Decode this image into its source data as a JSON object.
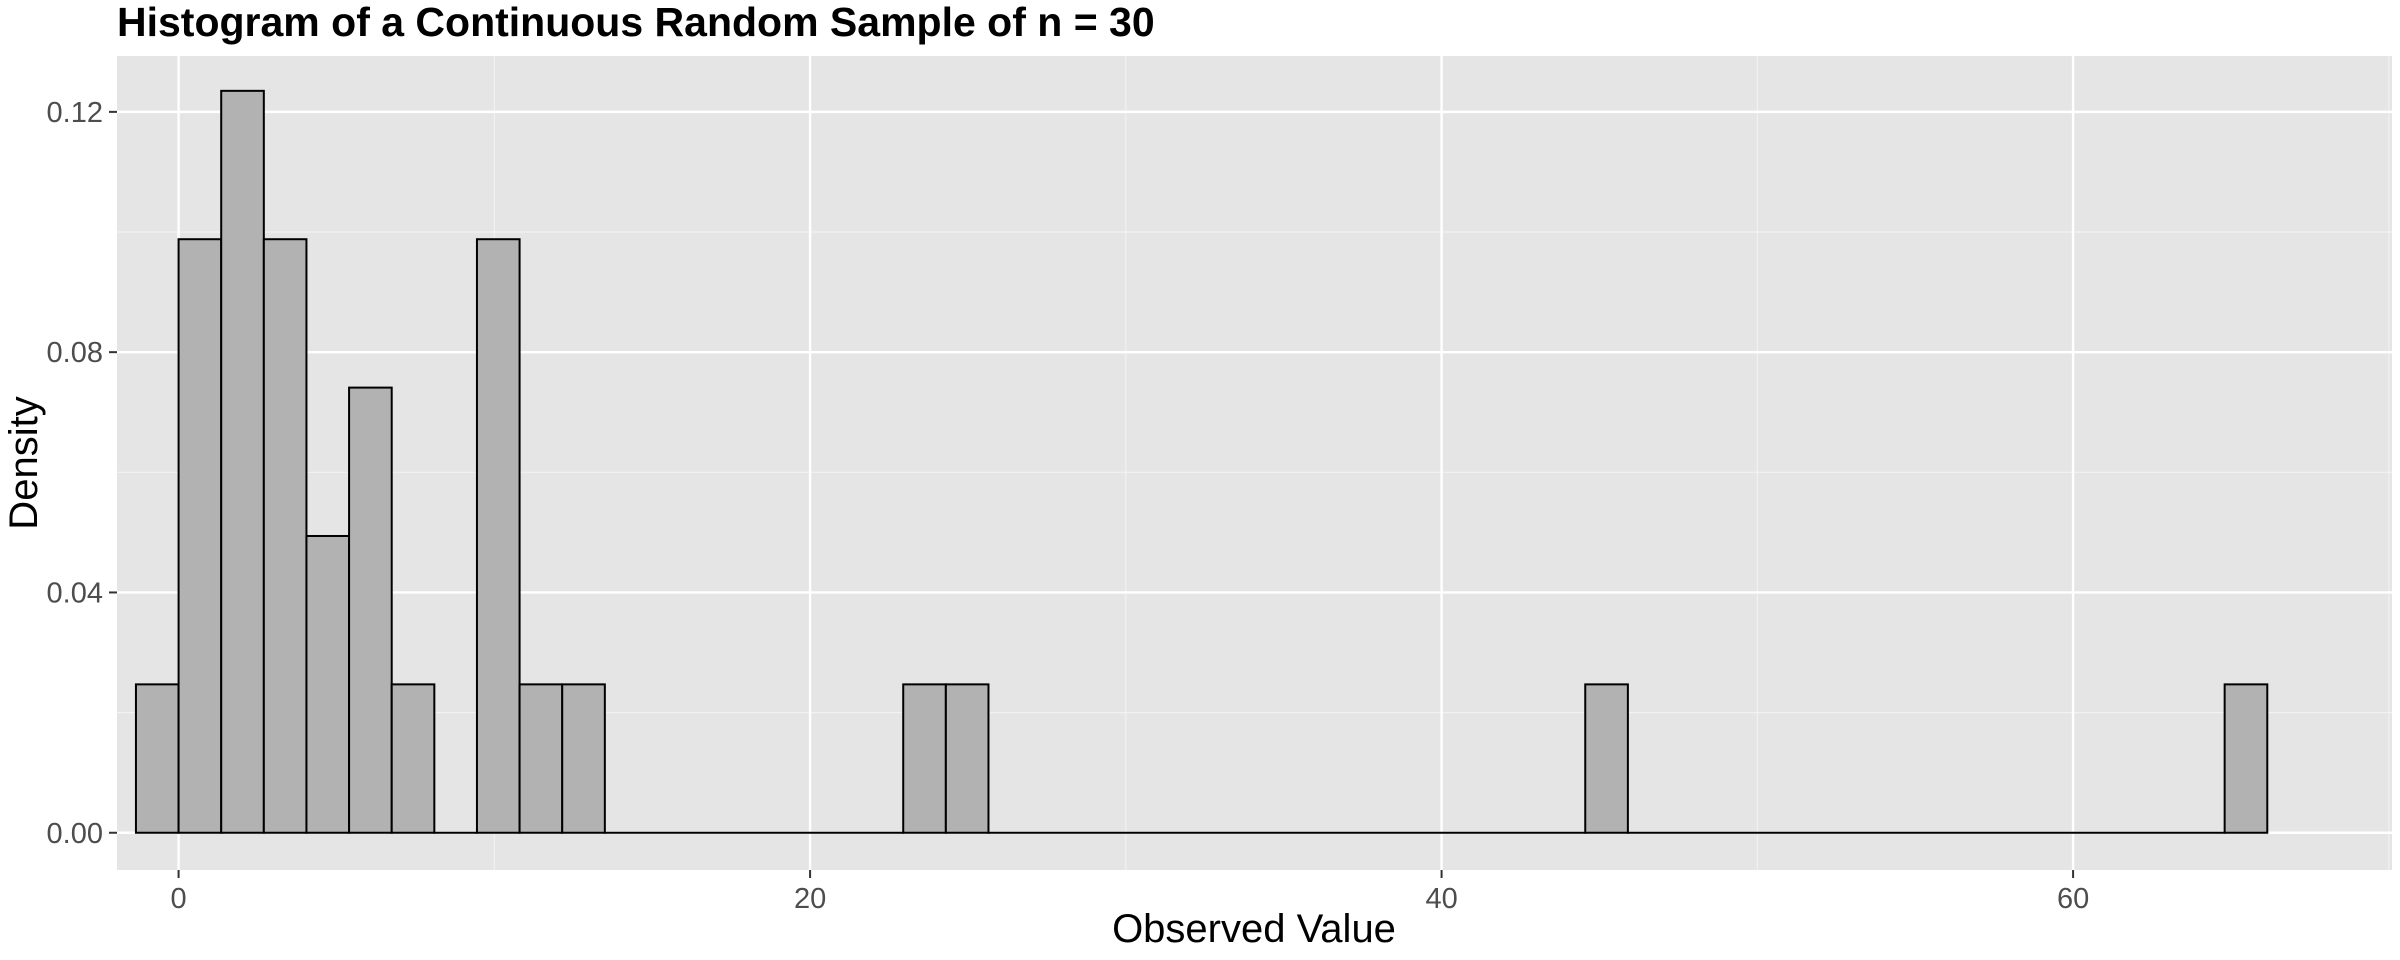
{
  "chart_data": {
    "type": "bar",
    "title": "Histogram of a Continuous Random Sample of n = 30",
    "xlabel": "Observed Value",
    "ylabel": "Density",
    "xlim": [
      -1.95,
      70.1
    ],
    "ylim": [
      -0.0062,
      0.1293
    ],
    "bin_width": 1.35,
    "bins": [
      {
        "x0": -1.35,
        "x1": 0.0,
        "density": 0.0247
      },
      {
        "x0": 0.0,
        "x1": 1.35,
        "density": 0.0988
      },
      {
        "x0": 1.35,
        "x1": 2.7,
        "density": 0.1235
      },
      {
        "x0": 2.7,
        "x1": 4.05,
        "density": 0.0988
      },
      {
        "x0": 4.05,
        "x1": 5.4,
        "density": 0.0494
      },
      {
        "x0": 5.4,
        "x1": 6.75,
        "density": 0.0741
      },
      {
        "x0": 6.75,
        "x1": 8.1,
        "density": 0.0247
      },
      {
        "x0": 8.1,
        "x1": 9.45,
        "density": 0.0
      },
      {
        "x0": 9.45,
        "x1": 10.8,
        "density": 0.0988
      },
      {
        "x0": 10.8,
        "x1": 12.15,
        "density": 0.0247
      },
      {
        "x0": 12.15,
        "x1": 13.5,
        "density": 0.0247
      },
      {
        "x0": 13.5,
        "x1": 22.95,
        "density": 0.0
      },
      {
        "x0": 22.95,
        "x1": 24.3,
        "density": 0.0247
      },
      {
        "x0": 24.3,
        "x1": 25.65,
        "density": 0.0247
      },
      {
        "x0": 25.65,
        "x1": 44.55,
        "density": 0.0
      },
      {
        "x0": 44.55,
        "x1": 45.9,
        "density": 0.0247
      },
      {
        "x0": 45.9,
        "x1": 64.8,
        "density": 0.0
      },
      {
        "x0": 64.8,
        "x1": 66.15,
        "density": 0.0247
      }
    ],
    "x_ticks": [
      {
        "value": 0,
        "label": "0"
      },
      {
        "value": 20,
        "label": "20"
      },
      {
        "value": 40,
        "label": "40"
      },
      {
        "value": 60,
        "label": "60"
      }
    ],
    "x_minor_ticks": [
      10,
      30,
      50,
      70
    ],
    "y_ticks": [
      {
        "value": 0.0,
        "label": "0.00"
      },
      {
        "value": 0.04,
        "label": "0.04"
      },
      {
        "value": 0.08,
        "label": "0.08"
      },
      {
        "value": 0.12,
        "label": "0.12"
      }
    ],
    "y_minor_ticks": [
      0.02,
      0.06,
      0.1
    ],
    "grid": true,
    "legend": "none",
    "colors": {
      "panel_background": "#e5e5e5",
      "grid_major": "#ffffff",
      "grid_minor": "#f2f2f2",
      "bar_fill": "#b2b2b2",
      "bar_outline": "#000000",
      "tick_text": "#4d4d4d",
      "tick_mark": "#333333"
    }
  }
}
